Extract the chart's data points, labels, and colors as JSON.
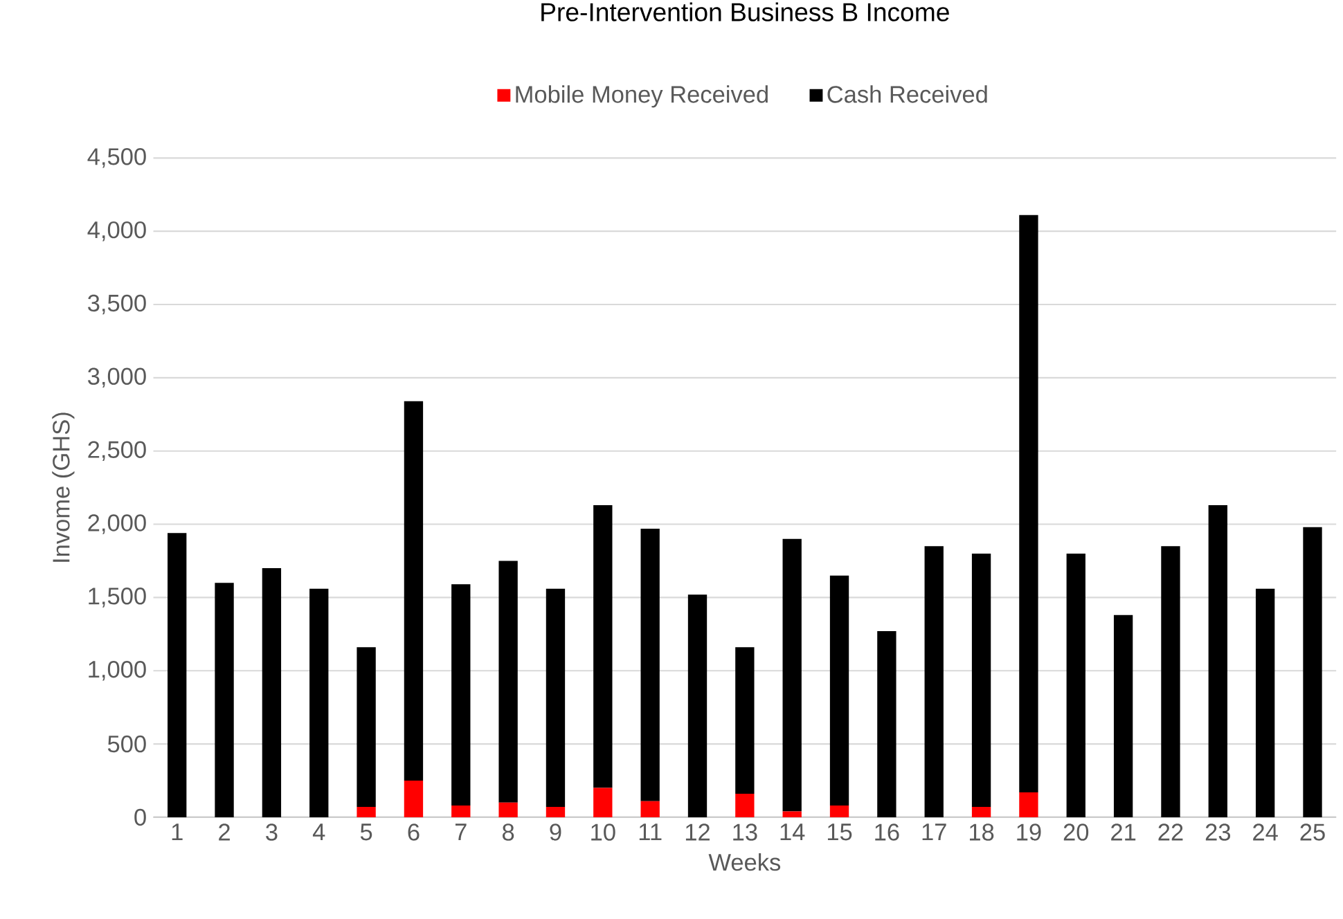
{
  "chart_data": {
    "type": "bar",
    "stacked": true,
    "title": "Pre-Intervention Business B Income",
    "xlabel": "Weeks",
    "ylabel": "Invome (GHS)",
    "categories": [
      "1",
      "2",
      "3",
      "4",
      "5",
      "6",
      "7",
      "8",
      "9",
      "10",
      "11",
      "12",
      "13",
      "14",
      "15",
      "16",
      "17",
      "18",
      "19",
      "20",
      "21",
      "22",
      "23",
      "24",
      "25"
    ],
    "series": [
      {
        "name": "Mobile Money Received",
        "color": "#ff0000",
        "values": [
          0,
          0,
          0,
          0,
          70,
          250,
          80,
          100,
          70,
          200,
          110,
          0,
          160,
          40,
          80,
          0,
          0,
          70,
          170,
          0,
          0,
          0,
          0,
          0,
          0
        ]
      },
      {
        "name": "Cash Received",
        "color": "#000000",
        "values": [
          1940,
          1600,
          1700,
          1560,
          1090,
          2590,
          1510,
          1650,
          1490,
          1930,
          1860,
          1520,
          1000,
          1860,
          1570,
          1270,
          1850,
          1730,
          3940,
          1800,
          1380,
          1850,
          2130,
          1560,
          1980
        ]
      }
    ],
    "ylim": [
      0,
      4500
    ],
    "yticks": [
      {
        "value": 0,
        "label": "0"
      },
      {
        "value": 500,
        "label": "500"
      },
      {
        "value": 1000,
        "label": "1,000"
      },
      {
        "value": 1500,
        "label": "1,500"
      },
      {
        "value": 2000,
        "label": "2,000"
      },
      {
        "value": 2500,
        "label": "2,500"
      },
      {
        "value": 3000,
        "label": "3,000"
      },
      {
        "value": 3500,
        "label": "3,500"
      },
      {
        "value": 4000,
        "label": "4,000"
      },
      {
        "value": 4500,
        "label": "4,500"
      }
    ],
    "grid": "y",
    "legend": "top"
  }
}
